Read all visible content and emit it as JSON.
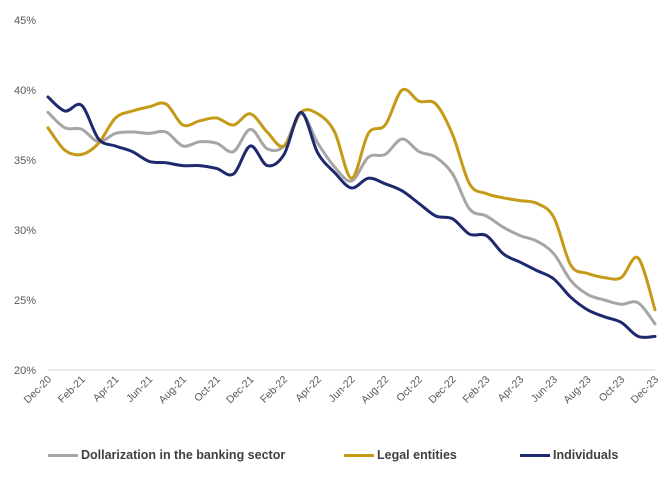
{
  "chart_data": {
    "type": "line",
    "y_ticks": [
      "20%",
      "25%",
      "30%",
      "35%",
      "40%",
      "45%"
    ],
    "ylim": [
      20,
      45
    ],
    "x_ticks": [
      "Dec-20",
      "Feb-21",
      "Apr-21",
      "Jun-21",
      "Aug-21",
      "Oct-21",
      "Dec-21",
      "Feb-22",
      "Apr-22",
      "Jun-22",
      "Aug-22",
      "Oct-22",
      "Dec-22",
      "Feb-23",
      "Apr-23",
      "Jun-23",
      "Aug-23",
      "Oct-23",
      "Dec-23"
    ],
    "grid": false,
    "legend_position": "bottom",
    "x_months": [
      0,
      1,
      2,
      3,
      4,
      5,
      6,
      7,
      8,
      9,
      10,
      11,
      12,
      13,
      14,
      15,
      16,
      17,
      18,
      19,
      20,
      21,
      22,
      23,
      24,
      25,
      26,
      27,
      28,
      29,
      30,
      31,
      32,
      33,
      34,
      35,
      36
    ],
    "series": [
      {
        "name": "Dollarization in the banking sector",
        "color": "#a6a6a6",
        "values": [
          38.4,
          37.3,
          37.2,
          36.3,
          36.9,
          37.0,
          36.9,
          37.0,
          36.0,
          36.3,
          36.2,
          35.6,
          37.2,
          35.8,
          36.0,
          38.3,
          36.2,
          34.5,
          33.5,
          35.2,
          35.4,
          36.5,
          35.6,
          35.2,
          34.0,
          31.5,
          31.0,
          30.2,
          29.6,
          29.2,
          28.3,
          26.4,
          25.4,
          25.0,
          24.7,
          24.8,
          23.3
        ]
      },
      {
        "name": "Legal entities",
        "color": "#c59a16",
        "values": [
          37.3,
          35.7,
          35.4,
          36.2,
          38.0,
          38.5,
          38.8,
          39.0,
          37.5,
          37.8,
          38.0,
          37.5,
          38.3,
          37.0,
          36.0,
          38.4,
          38.3,
          37.0,
          33.7,
          36.9,
          37.5,
          40.0,
          39.2,
          39.0,
          36.8,
          33.3,
          32.6,
          32.3,
          32.1,
          31.9,
          30.9,
          27.5,
          26.9,
          26.6,
          26.6,
          28.0,
          24.3
        ]
      },
      {
        "name": "Individuals",
        "color": "#1f2a6e",
        "values": [
          39.5,
          38.5,
          38.9,
          36.5,
          36.0,
          35.6,
          34.9,
          34.8,
          34.6,
          34.6,
          34.4,
          34.0,
          36.0,
          34.6,
          35.4,
          38.4,
          35.5,
          34.1,
          33.0,
          33.7,
          33.3,
          32.8,
          31.9,
          31.0,
          30.8,
          29.7,
          29.6,
          28.3,
          27.7,
          27.1,
          26.5,
          25.2,
          24.3,
          23.8,
          23.4,
          22.4,
          22.4
        ]
      }
    ]
  },
  "legend": [
    {
      "label": "Dollarization in the banking sector",
      "color": "#a6a6a6"
    },
    {
      "label": "Legal entities",
      "color": "#c59a16"
    },
    {
      "label": "Individuals",
      "color": "#1f2a6e"
    }
  ]
}
